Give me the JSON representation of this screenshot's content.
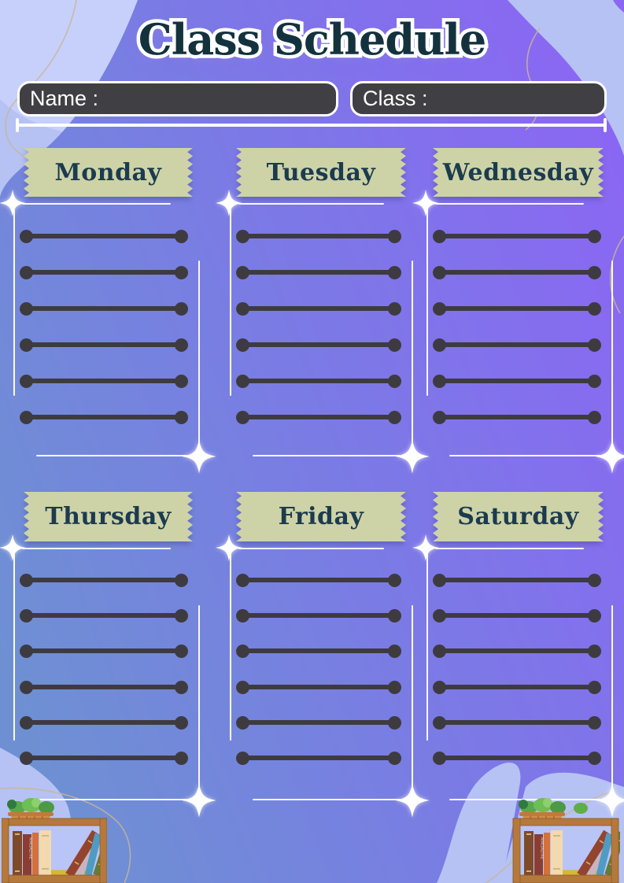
{
  "header": {
    "title": "Class Schedule"
  },
  "form": {
    "name_label": "Name :",
    "name_value": "",
    "class_label": "Class :",
    "class_value": ""
  },
  "days": [
    {
      "label": "Monday"
    },
    {
      "label": "Tuesday"
    },
    {
      "label": "Wednesday"
    },
    {
      "label": "Thursday"
    },
    {
      "label": "Friday"
    },
    {
      "label": "Saturday"
    }
  ],
  "schedule": {
    "lines_per_day": 6,
    "total_days": 6
  },
  "decor": {
    "left_bookshelf_book_label": "MAGAZINE",
    "right_bookshelf_book_label": "MAGAZINE"
  },
  "colors": {
    "page_background": "#b6c2f4",
    "blob_blue": "#6e90d3",
    "blob_purple": "#8a67f3",
    "banner": "#cdd3a6",
    "banner_text": "#1c3b4f",
    "title_text": "#13323e",
    "field_background": "#403f44",
    "field_border": "#ffffff",
    "slot_line": "#3e3b40",
    "sparkle": "#ffffff",
    "shelf_wood": "#b5793c"
  }
}
